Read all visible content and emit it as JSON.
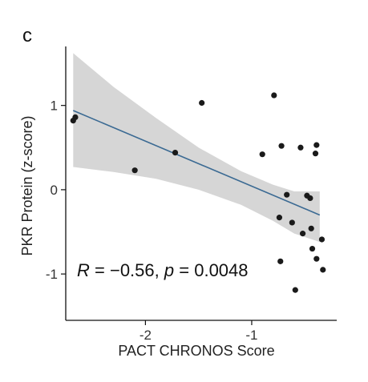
{
  "panel_label": "c",
  "chart_data": {
    "type": "scatter",
    "xlabel": "PACT CHRONOS Score",
    "ylabel": "PKR Protein (z-score)",
    "xlim": [
      -2.75,
      -0.2
    ],
    "ylim": [
      -1.55,
      1.7
    ],
    "xticks": [
      -2,
      -1
    ],
    "xtick_labels": [
      "-2",
      "-1"
    ],
    "yticks": [
      1,
      0,
      -1
    ],
    "ytick_labels": [
      "1",
      "0",
      "-1"
    ],
    "grid": false,
    "legend": "none",
    "point_color": "#1a1a1a",
    "regression": {
      "x": [
        -2.68,
        -0.36
      ],
      "y": [
        0.94,
        -0.3
      ],
      "line_color": "#3b6a93",
      "band_color": "#d6d6d6",
      "band": {
        "x": [
          -2.68,
          -2.3,
          -1.9,
          -1.5,
          -1.1,
          -0.8,
          -0.6,
          -0.36
        ],
        "upper": [
          1.62,
          1.22,
          0.85,
          0.5,
          0.22,
          0.06,
          -0.02,
          -0.02
        ],
        "lower": [
          0.27,
          0.21,
          0.13,
          0.0,
          -0.18,
          -0.37,
          -0.52,
          -0.62
        ]
      }
    },
    "annotation": {
      "R_label": "R",
      "R_value": "= −0.56,",
      "p_label": "p",
      "p_value": "= 0.0048"
    },
    "points": [
      {
        "x": -2.68,
        "y": 0.82
      },
      {
        "x": -2.66,
        "y": 0.86
      },
      {
        "x": -2.1,
        "y": 0.23
      },
      {
        "x": -1.72,
        "y": 0.44
      },
      {
        "x": -1.47,
        "y": 1.03
      },
      {
        "x": -0.9,
        "y": 0.42
      },
      {
        "x": -0.79,
        "y": 1.12
      },
      {
        "x": -0.72,
        "y": 0.52
      },
      {
        "x": -0.74,
        "y": -0.33
      },
      {
        "x": -0.73,
        "y": -0.85
      },
      {
        "x": -0.67,
        "y": -0.06
      },
      {
        "x": -0.62,
        "y": -0.39
      },
      {
        "x": -0.59,
        "y": -1.19
      },
      {
        "x": -0.54,
        "y": 0.5
      },
      {
        "x": -0.52,
        "y": -0.52
      },
      {
        "x": -0.48,
        "y": -0.07
      },
      {
        "x": -0.45,
        "y": -0.1
      },
      {
        "x": -0.44,
        "y": -0.46
      },
      {
        "x": -0.43,
        "y": -0.7
      },
      {
        "x": -0.39,
        "y": 0.53
      },
      {
        "x": -0.4,
        "y": 0.43
      },
      {
        "x": -0.39,
        "y": -0.82
      },
      {
        "x": -0.34,
        "y": -0.59
      },
      {
        "x": -0.33,
        "y": -0.95
      }
    ]
  }
}
